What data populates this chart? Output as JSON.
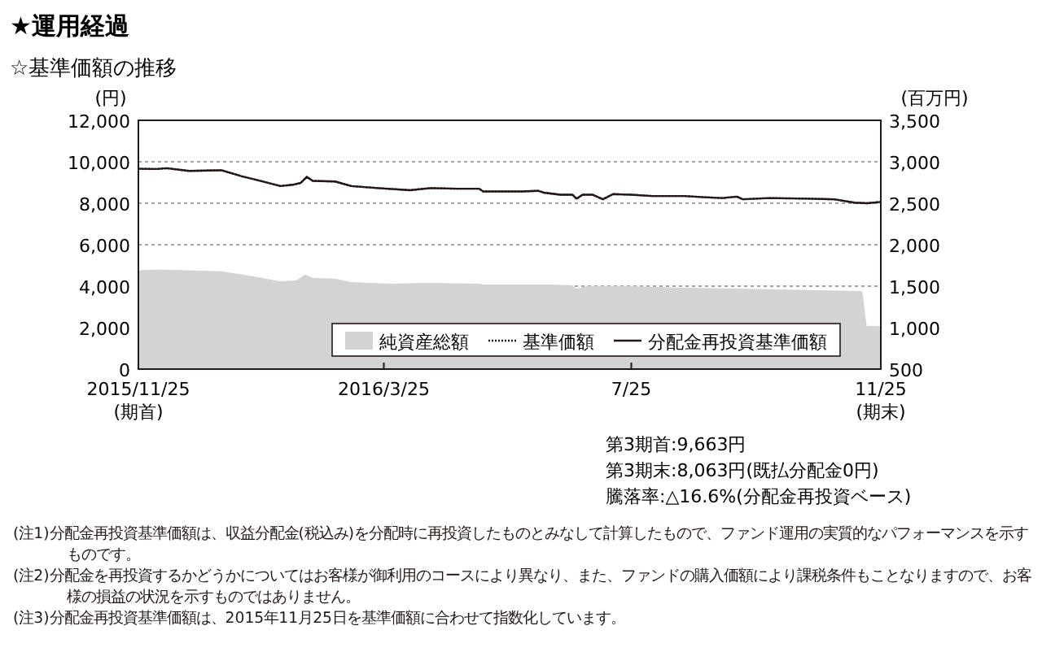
{
  "chart_data": {
    "type": "line",
    "title": "★運用経過",
    "subtitle": "☆基準価額の推移",
    "ylabel": "(円)",
    "y2label": "(百万円)",
    "x": [
      "2015-11-25",
      "2015-12-04",
      "2015-12-09",
      "2015-12-20",
      "2016-01-05",
      "2016-01-15",
      "2016-01-24",
      "2016-02-03",
      "2016-02-09",
      "2016-02-13",
      "2016-02-16",
      "2016-02-19",
      "2016-03-01",
      "2016-03-09",
      "2016-03-22",
      "2016-04-07",
      "2016-04-17",
      "2016-04-30",
      "2016-05-11",
      "2016-05-13",
      "2016-06-01",
      "2016-06-09",
      "2016-06-12",
      "2016-06-20",
      "2016-06-26",
      "2016-06-28",
      "2016-07-01",
      "2016-07-06",
      "2016-07-11",
      "2016-07-16",
      "2016-07-25",
      "2016-08-04",
      "2016-08-20",
      "2016-08-30",
      "2016-09-08",
      "2016-09-15",
      "2016-09-18",
      "2016-10-01",
      "2016-10-20",
      "2016-11-02",
      "2016-11-12",
      "2016-11-18",
      "2016-11-25"
    ],
    "series": [
      {
        "name": "純資産総額",
        "type": "area",
        "axis": "y2",
        "color": "#d3d3d3",
        "x": [
          "2015-11-25",
          "2015-12-04",
          "2015-12-20",
          "2016-01-05",
          "2016-01-18",
          "2016-02-03",
          "2016-02-11",
          "2016-02-15",
          "2016-02-19",
          "2016-03-01",
          "2016-03-09",
          "2016-03-29",
          "2016-04-17",
          "2016-05-11",
          "2016-05-13",
          "2016-06-17",
          "2016-06-26",
          "2016-06-28",
          "2016-07-03",
          "2016-07-25",
          "2016-08-20",
          "2016-09-15",
          "2016-10-07",
          "2016-10-26",
          "2016-11-15",
          "2016-11-16",
          "2016-11-18",
          "2016-11-25"
        ],
        "values": [
          1690,
          1700,
          1690,
          1680,
          1630,
          1560,
          1570,
          1640,
          1600,
          1590,
          1550,
          1530,
          1540,
          1530,
          1520,
          1520,
          1510,
          1470,
          1500,
          1500,
          1480,
          1470,
          1460,
          1450,
          1440,
          1430,
          1020,
          1020
        ]
      },
      {
        "name": "基準価額",
        "line_style": "dotted",
        "color": "#231815",
        "values": [
          9663,
          9650,
          9690,
          9560,
          9590,
          9300,
          9080,
          8830,
          8890,
          8980,
          9270,
          9080,
          9050,
          8830,
          8730,
          8630,
          8730,
          8700,
          8700,
          8570,
          8570,
          8600,
          8510,
          8410,
          8410,
          8220,
          8410,
          8410,
          8190,
          8440,
          8410,
          8350,
          8350,
          8290,
          8250,
          8320,
          8190,
          8250,
          8220,
          8190,
          8030,
          8000,
          8063
        ]
      },
      {
        "name": "分配金再投資基準価額",
        "line_style": "solid",
        "color": "#231815",
        "values": [
          9663,
          9650,
          9690,
          9560,
          9590,
          9300,
          9080,
          8830,
          8890,
          8980,
          9270,
          9080,
          9050,
          8830,
          8730,
          8630,
          8730,
          8700,
          8700,
          8570,
          8570,
          8600,
          8510,
          8410,
          8410,
          8220,
          8410,
          8410,
          8190,
          8440,
          8410,
          8350,
          8350,
          8290,
          8250,
          8320,
          8190,
          8250,
          8220,
          8190,
          8030,
          8000,
          8063
        ]
      }
    ],
    "xlim": [
      "2015-11-25",
      "2016-11-25"
    ],
    "xticks": [
      {
        "value": "2015-11-25",
        "label": "2015/11/25\n(期首)"
      },
      {
        "value": "2016-03-25",
        "label": "2016/3/25"
      },
      {
        "value": "2016-07-25",
        "label": "7/25"
      },
      {
        "value": "2016-11-25",
        "label": "11/25\n(期末)"
      }
    ],
    "ylim": [
      0,
      12000
    ],
    "yticks": [
      0,
      {
        "value": 2000,
        "label": "2,000"
      },
      {
        "value": 4000,
        "label": "4,000"
      },
      {
        "value": 6000,
        "label": "6,000"
      },
      {
        "value": 8000,
        "label": "8,000"
      },
      {
        "value": 10000,
        "label": "10,000"
      },
      {
        "value": 12000,
        "label": "12,000"
      }
    ],
    "y2lim": [
      500,
      3500
    ],
    "y2ticks": [
      500,
      {
        "value": 1000,
        "label": "1,000"
      },
      {
        "value": 1500,
        "label": "1,500"
      },
      {
        "value": 2000,
        "label": "2,000"
      },
      {
        "value": 2500,
        "label": "2,500"
      },
      {
        "value": 3000,
        "label": "3,000"
      },
      {
        "value": 3500,
        "label": "3,500"
      }
    ],
    "grid": "y",
    "legend": "bottom right",
    "annotations": [
      "第3期首:9,663円",
      "第3期末:8,063円(既払分配金0円)",
      "騰落率:△16.6%(分配金再投資ベース)",
      "(注1)分配金再投資基準価額は、収益分配金(税込み)を分配時に再投資したものとみなして計算したもので、ファンド運用の実質的なパフォーマンスを示すものです。",
      "(注2)分配金を再投資するかどうかについてはお客様が御利用のコースにより異なり、また、ファンドの購入価額により課税条件もことなりますので、お客様の損益の状況を示すものではありません。",
      "(注3)分配金再投資基準価額は、2015年11月25日を基準価額に合わせて指数化しています。"
    ]
  }
}
